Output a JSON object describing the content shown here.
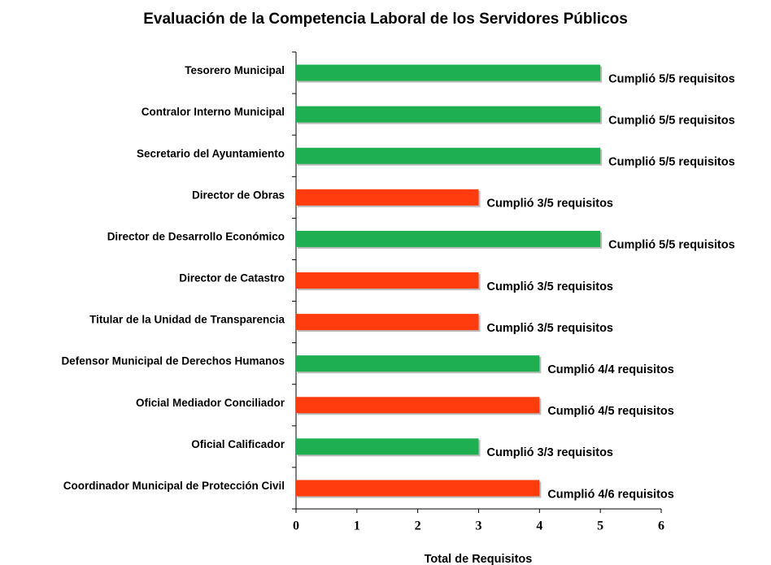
{
  "chart_data": {
    "type": "bar",
    "orientation": "horizontal",
    "title": "Evaluación de la Competencia Laboral de los Servidores Públicos",
    "x_label": "Total de Requisitos",
    "categories": [
      "Tesorero Municipal",
      "Contralor Interno Municipal",
      "Secretario del Ayuntamiento",
      "Director de Obras",
      "Director de Desarrollo Económico",
      "Director de Catastro",
      "Titular de la Unidad de Transparencia",
      "Defensor Municipal de Derechos Humanos",
      "Oficial Mediador Conciliador",
      "Oficial Calificador",
      "Coordinador Municipal de Protección Civil"
    ],
    "values": [
      5,
      5,
      5,
      3,
      5,
      3,
      3,
      4,
      4,
      3,
      4
    ],
    "value_labels": [
      "Cumplió 5/5 requisitos",
      "Cumplió 5/5 requisitos",
      "Cumplió 5/5 requisitos",
      "Cumplió 3/5 requisitos",
      "Cumplió 5/5 requisitos",
      "Cumplió 3/5 requisitos",
      "Cumplió 3/5 requisitos",
      "Cumplió 4/4 requisitos",
      "Cumplió 4/5 requisitos",
      "Cumplió 3/3 requisitos",
      "Cumplió 4/6 requisitos"
    ],
    "colors": [
      "#1eb050",
      "#1eb050",
      "#1eb050",
      "#ff3c0e",
      "#1eb050",
      "#ff3c0e",
      "#ff3c0e",
      "#1eb050",
      "#ff3c0e",
      "#1eb050",
      "#ff3c0e"
    ],
    "xlim": [
      0,
      6
    ],
    "xticks": [
      0,
      1,
      2,
      3,
      4,
      5,
      6
    ],
    "grid": false
  }
}
